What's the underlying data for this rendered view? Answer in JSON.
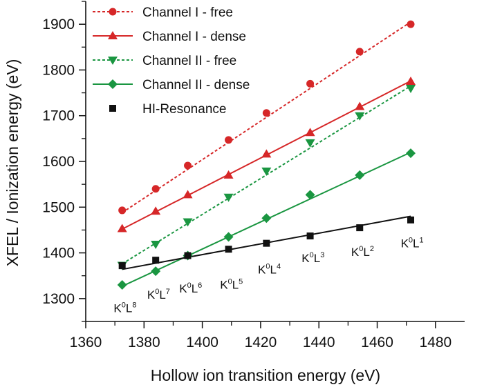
{
  "chart_data": {
    "type": "scatter",
    "title": "",
    "xlabel": "Hollow ion transition energy (eV)",
    "ylabel": "XFEL / Ionization energy (eV)",
    "xlim": [
      1360,
      1490
    ],
    "ylim": [
      1250,
      1950
    ],
    "xticks": [
      1360,
      1380,
      1400,
      1420,
      1440,
      1460,
      1480
    ],
    "yticks": [
      1300,
      1400,
      1500,
      1600,
      1700,
      1800,
      1900
    ],
    "xtick_labels": [
      "1360",
      "1380",
      "1400",
      "1420",
      "1440",
      "1460",
      "1480"
    ],
    "ytick_labels": [
      "1300",
      "1400",
      "1500",
      "1600",
      "1700",
      "1800",
      "1900"
    ],
    "grid": false,
    "legend_position": "top-left",
    "series": [
      {
        "name": "Channel I - free",
        "color": "#d62728",
        "marker": "circle",
        "line": "dashed",
        "x": [
          1372.5,
          1384,
          1395,
          1409,
          1422,
          1437,
          1454,
          1471.5
        ],
        "y": [
          1493,
          1540,
          1591,
          1647,
          1706,
          1770,
          1840,
          1900
        ],
        "fit": [
          [
            1372.5,
            1488
          ],
          [
            1471.5,
            1905
          ]
        ]
      },
      {
        "name": "Channel I - dense",
        "color": "#d62728",
        "marker": "triangle-up",
        "line": "solid",
        "x": [
          1372.5,
          1384,
          1395,
          1409,
          1422,
          1437,
          1454,
          1471.5
        ],
        "y": [
          1453,
          1491,
          1527,
          1570,
          1616,
          1663,
          1720,
          1775
        ],
        "fit": [
          [
            1372.5,
            1452
          ],
          [
            1471.5,
            1776
          ]
        ]
      },
      {
        "name": "Channel II - free",
        "color": "#1a9641",
        "marker": "triangle-down",
        "line": "dashed",
        "x": [
          1372.5,
          1384,
          1395,
          1409,
          1422,
          1437,
          1454,
          1471.5
        ],
        "y": [
          1373,
          1419,
          1468,
          1522,
          1579,
          1641,
          1700,
          1760
        ],
        "fit": [
          [
            1372.5,
            1376
          ],
          [
            1471.5,
            1765
          ]
        ]
      },
      {
        "name": "Channel II - dense",
        "color": "#1a9641",
        "marker": "diamond",
        "line": "solid",
        "x": [
          1372.5,
          1384,
          1395,
          1409,
          1422,
          1437,
          1454,
          1471.5
        ],
        "y": [
          1330,
          1360,
          1394,
          1435,
          1476,
          1527,
          1570,
          1618
        ],
        "fit": [
          [
            1372.5,
            1327
          ],
          [
            1471.5,
            1620
          ]
        ]
      },
      {
        "name": "HI-Resonance",
        "color": "#111111",
        "marker": "square",
        "line": "solid",
        "x": [
          1372.5,
          1384,
          1395,
          1409,
          1422,
          1437,
          1454,
          1471.5
        ],
        "y": [
          1372,
          1384,
          1394,
          1408,
          1421,
          1437,
          1455,
          1472
        ],
        "fit": [
          [
            1372.5,
            1364
          ],
          [
            1471.5,
            1480
          ]
        ]
      }
    ],
    "annotations": [
      {
        "base": "K",
        "s1": "0",
        "mid": "L",
        "s2": "8",
        "x": 1373.5,
        "y": 1270
      },
      {
        "base": "K",
        "s1": "0",
        "mid": "L",
        "s2": "7",
        "x": 1385,
        "y": 1300
      },
      {
        "base": "K",
        "s1": "0",
        "mid": "L",
        "s2": "6",
        "x": 1396,
        "y": 1313
      },
      {
        "base": "K",
        "s1": "0",
        "mid": "L",
        "s2": "5",
        "x": 1410,
        "y": 1322
      },
      {
        "base": "K",
        "s1": "0",
        "mid": "L",
        "s2": "4",
        "x": 1423,
        "y": 1355
      },
      {
        "base": "K",
        "s1": "0",
        "mid": "L",
        "s2": "3",
        "x": 1438,
        "y": 1380
      },
      {
        "base": "K",
        "s1": "0",
        "mid": "L",
        "s2": "2",
        "x": 1455,
        "y": 1393
      },
      {
        "base": "K",
        "s1": "0",
        "mid": "L",
        "s2": "1",
        "x": 1472,
        "y": 1412
      }
    ]
  }
}
